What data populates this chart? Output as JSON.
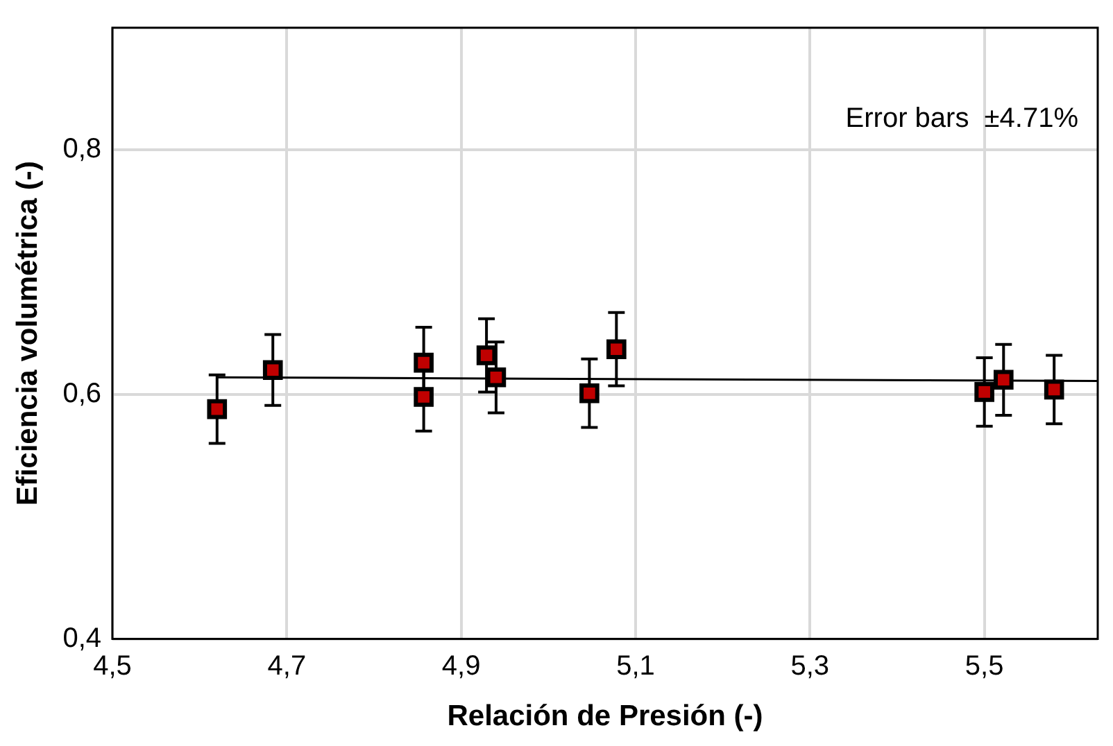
{
  "chart_data": {
    "type": "scatter",
    "xlabel": "Relación de Presión (-)",
    "ylabel": "Eficiencia volumétrica (-)",
    "xlim": [
      4.5,
      5.63
    ],
    "ylim": [
      0.4,
      0.9
    ],
    "xticks": [
      {
        "value": 4.5,
        "label": "4,5"
      },
      {
        "value": 4.7,
        "label": "4,7"
      },
      {
        "value": 4.9,
        "label": "4,9"
      },
      {
        "value": 5.1,
        "label": "5,1"
      },
      {
        "value": 5.3,
        "label": "5,3"
      },
      {
        "value": 5.5,
        "label": "5,5"
      }
    ],
    "yticks": [
      {
        "value": 0.4,
        "label": "0,4"
      },
      {
        "value": 0.6,
        "label": "0,6"
      },
      {
        "value": 0.8,
        "label": "0,8"
      }
    ],
    "grid": true,
    "marker": "square",
    "legend": false,
    "annotations": [
      "Error bars  ±4.71%"
    ],
    "series": [
      {
        "type": "scatter",
        "color": "#c00000",
        "x": [
          4.62,
          4.684,
          4.857,
          4.857,
          4.929,
          4.94,
          5.047,
          5.078,
          5.5,
          5.522,
          5.58
        ],
        "values": [
          0.588,
          0.62,
          0.626,
          0.598,
          0.632,
          0.614,
          0.601,
          0.637,
          0.602,
          0.612,
          0.604
        ],
        "errors": [
          0.028,
          0.029,
          0.029,
          0.028,
          0.03,
          0.029,
          0.028,
          0.03,
          0.028,
          0.029,
          0.028
        ]
      },
      {
        "type": "line",
        "color": "#000000",
        "x": [
          4.62,
          5.63
        ],
        "values": [
          0.614,
          0.611
        ],
        "marker": "none"
      }
    ]
  }
}
